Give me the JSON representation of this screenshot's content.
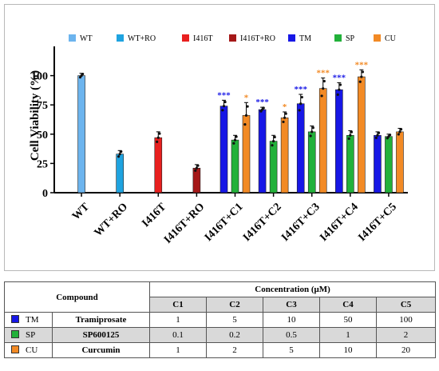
{
  "chart_data": {
    "type": "bar",
    "ylabel": "Cell Viability (%)",
    "ylim": [
      0,
      125
    ],
    "yticks": [
      0,
      25,
      50,
      75,
      100
    ],
    "categories": [
      "WT",
      "WT+RO",
      "I416T",
      "I416T+RO",
      "I416T+C1",
      "I416T+C2",
      "I416T+C3",
      "I416T+C4",
      "I416T+C5"
    ],
    "legend": [
      {
        "name": "WT",
        "color": "#6cb4ee"
      },
      {
        "name": "WT+RO",
        "color": "#1fa3e0"
      },
      {
        "name": "I416T",
        "color": "#e8201f"
      },
      {
        "name": "I416T+RO",
        "color": "#a51818"
      },
      {
        "name": "TM",
        "color": "#1717e6"
      },
      {
        "name": "SP",
        "color": "#22b13a"
      },
      {
        "name": "CU",
        "color": "#f28a25"
      }
    ],
    "bars": [
      {
        "category": "WT",
        "series": "WT",
        "value": 100,
        "err": 2,
        "sig": ""
      },
      {
        "category": "WT+RO",
        "series": "WT+RO",
        "value": 33,
        "err": 3,
        "sig": ""
      },
      {
        "category": "I416T",
        "series": "I416T",
        "value": 47,
        "err": 5,
        "sig": ""
      },
      {
        "category": "I416T+RO",
        "series": "I416T+RO",
        "value": 21,
        "err": 3,
        "sig": ""
      },
      {
        "category": "I416T+C1",
        "series": "TM",
        "value": 74,
        "err": 5,
        "sig": "***"
      },
      {
        "category": "I416T+C1",
        "series": "SP",
        "value": 45,
        "err": 4,
        "sig": ""
      },
      {
        "category": "I416T+C1",
        "series": "CU",
        "value": 66,
        "err": 11,
        "sig": "*"
      },
      {
        "category": "I416T+C2",
        "series": "TM",
        "value": 71,
        "err": 2,
        "sig": "***"
      },
      {
        "category": "I416T+C2",
        "series": "SP",
        "value": 44,
        "err": 5,
        "sig": ""
      },
      {
        "category": "I416T+C2",
        "series": "CU",
        "value": 64,
        "err": 5,
        "sig": "*"
      },
      {
        "category": "I416T+C3",
        "series": "TM",
        "value": 76,
        "err": 8,
        "sig": "***"
      },
      {
        "category": "I416T+C3",
        "series": "SP",
        "value": 52,
        "err": 5,
        "sig": ""
      },
      {
        "category": "I416T+C3",
        "series": "CU",
        "value": 89,
        "err": 9,
        "sig": "***"
      },
      {
        "category": "I416T+C4",
        "series": "TM",
        "value": 88,
        "err": 6,
        "sig": "***"
      },
      {
        "category": "I416T+C4",
        "series": "SP",
        "value": 49,
        "err": 4,
        "sig": ""
      },
      {
        "category": "I416T+C4",
        "series": "CU",
        "value": 99,
        "err": 6,
        "sig": "***"
      },
      {
        "category": "I416T+C5",
        "series": "TM",
        "value": 49,
        "err": 3,
        "sig": ""
      },
      {
        "category": "I416T+C5",
        "series": "SP",
        "value": 48,
        "err": 2,
        "sig": ""
      },
      {
        "category": "I416T+C5",
        "series": "CU",
        "value": 52,
        "err": 3,
        "sig": ""
      }
    ]
  },
  "table": {
    "compound_header": "Compound",
    "concentration_header": "Concentration (μM)",
    "columns": [
      "C1",
      "C2",
      "C3",
      "C4",
      "C5"
    ],
    "rows": [
      {
        "abbr": "TM",
        "color": "#1717e6",
        "name": "Tramiprosate",
        "values": [
          "1",
          "5",
          "10",
          "50",
          "100"
        ]
      },
      {
        "abbr": "SP",
        "color": "#22b13a",
        "name": "SP600125",
        "values": [
          "0.1",
          "0.2",
          "0.5",
          "1",
          "2"
        ]
      },
      {
        "abbr": "CU",
        "color": "#f28a25",
        "name": "Curcumin",
        "values": [
          "1",
          "2",
          "5",
          "10",
          "20"
        ]
      }
    ]
  }
}
